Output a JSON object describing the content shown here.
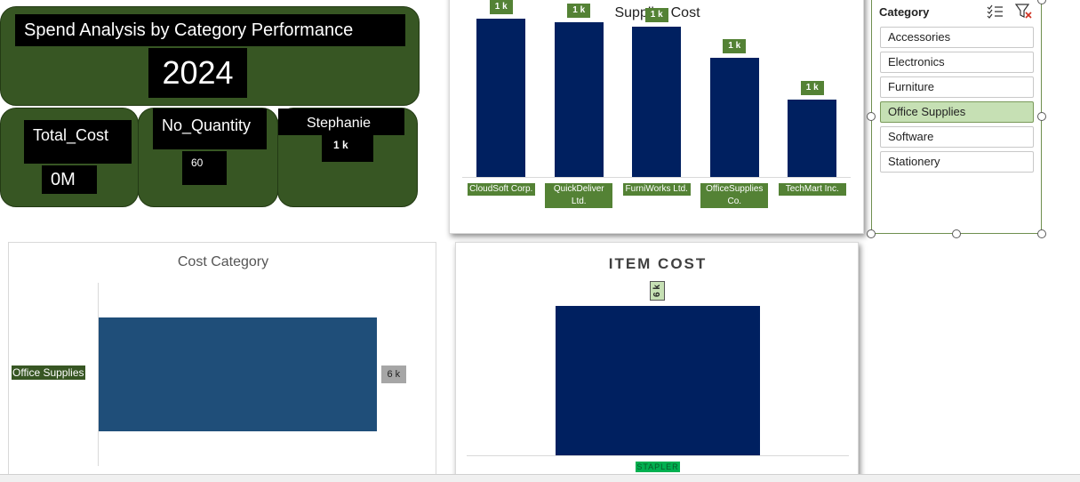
{
  "header": {
    "title": "Spend Analysis by Category Performance",
    "year": "2024"
  },
  "kpis": {
    "total_cost": {
      "label": "Total_Cost",
      "value": "0M"
    },
    "no_quantity": {
      "label": "No_Quantity",
      "value": "60"
    },
    "top_name": {
      "label": "Stephanie",
      "value": "1 k"
    }
  },
  "supplier_chart": {
    "title": "Supplier Cost",
    "chart_data": {
      "type": "bar",
      "categories": [
        "CloudSoft Corp.",
        "QuickDeliver Ltd.",
        "FurniWorks Ltd.",
        "OfficeSupplies Co.",
        "TechMart Inc."
      ],
      "values": [
        1.02,
        1.0,
        0.97,
        0.77,
        0.5
      ],
      "data_labels": [
        "1 k",
        "1 k",
        "1 k",
        "1 k",
        "1 k"
      ],
      "title": "Supplier Cost",
      "ylim": [
        0,
        1.05
      ],
      "grid": false,
      "legend": "none"
    }
  },
  "cost_category_chart": {
    "title": "Cost Category",
    "chart_data": {
      "type": "bar",
      "orientation": "horizontal",
      "categories": [
        "Office Supplies"
      ],
      "values": [
        6
      ],
      "data_labels": [
        "6 k"
      ],
      "title": "Cost Category",
      "xlim": [
        0,
        7
      ],
      "grid": false,
      "legend": "none"
    }
  },
  "item_cost_chart": {
    "title": "ITEM COST",
    "chart_data": {
      "type": "bar",
      "categories": [
        "STAPLER"
      ],
      "values": [
        6
      ],
      "data_labels": [
        "6 k"
      ],
      "title": "ITEM COST",
      "ylim": [
        0,
        6.3
      ],
      "grid": false,
      "legend": "none"
    }
  },
  "slicer": {
    "title": "Category",
    "items": [
      {
        "label": "Accessories",
        "selected": false
      },
      {
        "label": "Electronics",
        "selected": false
      },
      {
        "label": "Furniture",
        "selected": false
      },
      {
        "label": "Office Supplies",
        "selected": true
      },
      {
        "label": "Software",
        "selected": false
      },
      {
        "label": "Stationery",
        "selected": false
      }
    ],
    "multiselect_icon": "multi-select-icon",
    "clear_filter_icon": "clear-filter-icon"
  },
  "colors": {
    "card_green": "#375623",
    "bar_navy": "#002060",
    "label_green": "#548235",
    "cost_bar": "#1f4e79",
    "slicer_selected": "#c6e0b4"
  }
}
